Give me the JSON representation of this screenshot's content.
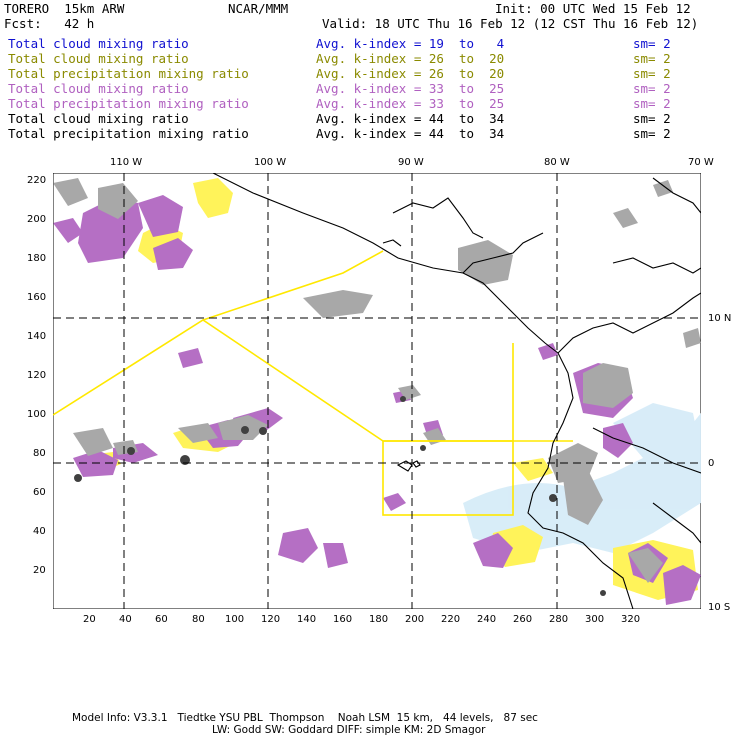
{
  "header": {
    "model": "TORERO  15km ARW",
    "center": "NCAR/MMM",
    "init": "Init: 00 UTC Wed 15 Feb 12",
    "fcst": "Fcst:   42 h",
    "valid": "Valid: 18 UTC Thu 16 Feb 12 (12 CST Thu 16 Feb 12)"
  },
  "legend": [
    {
      "field": "Total cloud mixing ratio",
      "index": "Avg. k-index = ",
      "from": "19",
      "to": "to",
      "end": "4",
      "sm": "sm= 2",
      "color": "#1010d0"
    },
    {
      "field": "Total cloud mixing ratio",
      "index": "Avg. k-index = ",
      "from": "26",
      "to": "to",
      "end": "20",
      "sm": "sm= 2",
      "color": "#8a8a00"
    },
    {
      "field": "Total precipitation mixing ratio",
      "index": "Avg. k-index = ",
      "from": "26",
      "to": "to",
      "end": "20",
      "sm": "sm= 2",
      "color": "#8a8a00"
    },
    {
      "field": "Total cloud mixing ratio",
      "index": "Avg. k-index = ",
      "from": "33",
      "to": "to",
      "end": "25",
      "sm": "sm= 2",
      "color": "#b060c0"
    },
    {
      "field": "Total precipitation mixing ratio",
      "index": "Avg. k-index = ",
      "from": "33",
      "to": "to",
      "end": "25",
      "sm": "sm= 2",
      "color": "#b060c0"
    },
    {
      "field": "Total cloud mixing ratio",
      "index": "Avg. k-index = ",
      "from": "44",
      "to": "to",
      "end": "34",
      "sm": "sm= 2",
      "color": "#000000"
    },
    {
      "field": "Total precipitation mixing ratio",
      "index": "Avg. k-index = ",
      "from": "44",
      "to": "to",
      "end": "34",
      "sm": "sm= 2",
      "color": "#000000"
    }
  ],
  "axes": {
    "top_labels": [
      "110 W",
      "100 W",
      "90 W",
      "80 W",
      "70 W"
    ],
    "right_labels": [
      "10 N",
      "0",
      "10 S"
    ],
    "left_labels": [
      "220",
      "200",
      "180",
      "160",
      "140",
      "120",
      "100",
      "80",
      "60",
      "40",
      "20"
    ],
    "bottom_labels": [
      "20",
      "40",
      "60",
      "80",
      "100",
      "120",
      "140",
      "160",
      "180",
      "200",
      "220",
      "240",
      "260",
      "280",
      "300",
      "320"
    ]
  },
  "colors": {
    "blue_field": "#cfe8f7",
    "yellow_field": "#fff35a",
    "purple_field": "#b56fc4",
    "gray_field": "#a8a8a8",
    "dark_field": "#404040",
    "yellow_lines": "#ffe800",
    "coast": "#000000"
  },
  "footer": {
    "line1": "Model Info: V3.3.1   Tiedtke YSU PBL  Thompson    Noah LSM  15 km,   44 levels,   87 sec",
    "line2": "LW: Godd SW: Goddard DIFF: simple KM: 2D Smagor"
  }
}
